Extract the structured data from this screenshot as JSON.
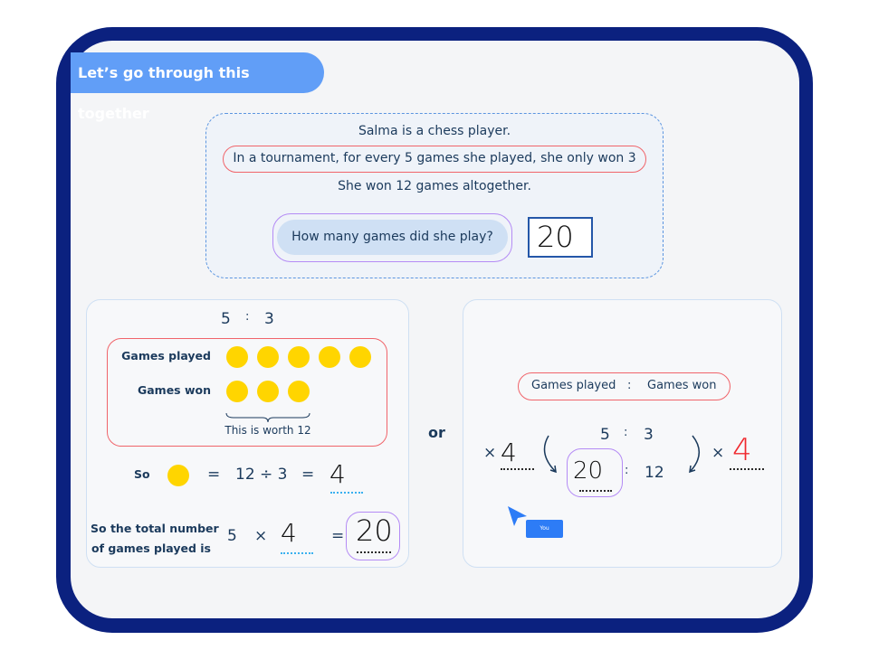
{
  "header": {
    "title": "Let’s go through this together"
  },
  "question": {
    "line1": "Salma is a chess player.",
    "line2": "In a tournament, for every 5 games she played, she only won 3",
    "line3": "She won 12 games altogether.",
    "prompt": "How many games did she play?",
    "answer": "20"
  },
  "left": {
    "ratio_a": "5",
    "ratio_sep": ":",
    "ratio_b": "3",
    "row1_label": "Games played",
    "row1_count": 5,
    "row2_label": "Games won",
    "row2_count": 3,
    "brace_label": "This is worth 12",
    "so_label": "So",
    "eq1": "=",
    "division": "12 ÷ 3",
    "eq2": "=",
    "unit_value": "4",
    "total_label_1": "So the total number",
    "total_label_2": "of games played is",
    "five": "5",
    "times": "×",
    "total_multiplier": "4",
    "eq3": "=",
    "total_answer": "20"
  },
  "or_label": "or",
  "right": {
    "header_a": "Games played",
    "header_sep": ":",
    "header_b": "Games won",
    "ratio_a": "5",
    "ratio_sep": ":",
    "ratio_b": "3",
    "left_times": "×",
    "left_multiplier": "4",
    "result_a": "20",
    "result_sep": ":",
    "result_b": "12",
    "right_times": "×",
    "right_multiplier": "4"
  },
  "cursor": {
    "label": "You",
    "color": "#2d7cf6"
  },
  "colors": {
    "frame": "#0b217f",
    "header": "#619ef7",
    "coin": "#ffd500",
    "red_outline": "#f0646a",
    "purple_outline": "#b48bf5"
  }
}
